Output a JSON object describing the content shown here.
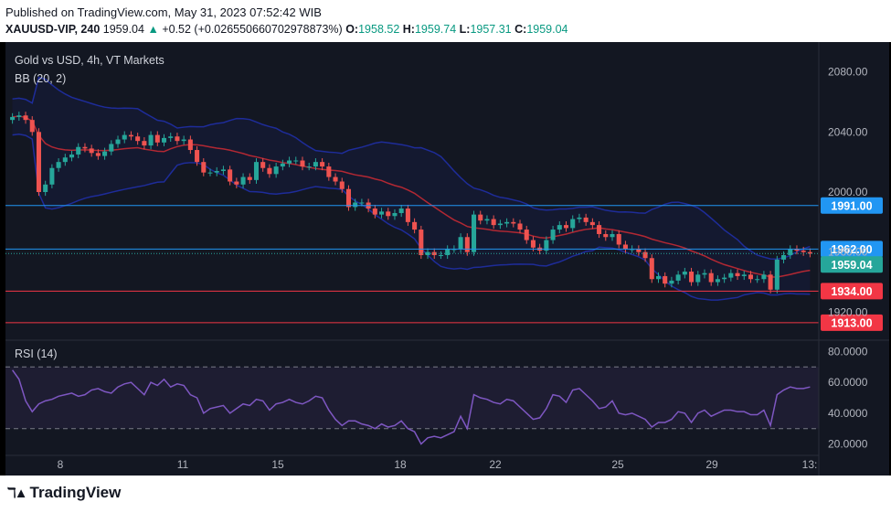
{
  "header": {
    "published": "Published on TradingView.com, May 31, 2023 07:52:42 WIB",
    "symbol": "XAUUSD-VIP, 240",
    "last": "1959.04",
    "change": "+0.52 (+0.026550660702978873%)",
    "o_label": "O:",
    "o": "1958.52",
    "h_label": "H:",
    "h": "1959.74",
    "l_label": "L:",
    "l": "1957.31",
    "c_label": "C:",
    "c": "1959.04"
  },
  "legend": {
    "title": "Gold vs USD, 4h, VT Markets",
    "bb": "BB (20, 2)",
    "rsi": "RSI (14)"
  },
  "footer": {
    "brand": "TradingView",
    "brand_icon": "tradingview-logo-icon"
  },
  "colors": {
    "bg": "#131722",
    "up": "#26a69a",
    "down": "#ef5350",
    "bb_band": "#1e2c99",
    "bb_basis": "#b22833",
    "rsi_line": "#7e57c2",
    "level_blue": "#2196f3",
    "level_red": "#f23645"
  },
  "chart_data": [
    {
      "type": "candlestick",
      "title": "Gold vs USD, 4h, VT Markets",
      "xlabel": "",
      "ylabel": "",
      "ylim": [
        1905,
        2095
      ],
      "y_ticks": [
        "2080.00",
        "2040.00",
        "2000.00",
        "1960.00",
        "1920.00"
      ],
      "x_ticks": [
        "8",
        "11",
        "15",
        "18",
        "22",
        "25",
        "29",
        "13:"
      ],
      "grid": false,
      "horizontal_levels": [
        {
          "label": "1991.00",
          "value": 1991.0,
          "color": "#2196f3"
        },
        {
          "label": "1962.00",
          "value": 1962.0,
          "color": "#2196f3"
        },
        {
          "label": "1934.00",
          "value": 1934.0,
          "color": "#f23645"
        },
        {
          "label": "1913.00",
          "value": 1913.0,
          "color": "#f23645"
        }
      ],
      "last_price": {
        "label": "1959.04",
        "value": 1959.04
      },
      "closes": [
        2050,
        2051,
        2048,
        2040,
        2000,
        2005,
        2016,
        2020,
        2023,
        2025,
        2030,
        2029,
        2026,
        2024,
        2027,
        2032,
        2035,
        2038,
        2037,
        2034,
        2031,
        2038,
        2033,
        2036,
        2037,
        2034,
        2035,
        2028,
        2020,
        2013,
        2013,
        2014,
        2015,
        2007,
        2005,
        2010,
        2008,
        2020,
        2016,
        2012,
        2017,
        2019,
        2021,
        2021,
        2017,
        2017,
        2020,
        2017,
        2010,
        2007,
        2002,
        1990,
        1993,
        1993,
        1989,
        1985,
        1987,
        1984,
        1986,
        1989,
        1980,
        1975,
        1958,
        1960,
        1958,
        1958,
        1962,
        1962,
        1970,
        1960,
        1985,
        1981,
        1982,
        1978,
        1979,
        1980,
        1979,
        1975,
        1968,
        1963,
        1961,
        1968,
        1975,
        1978,
        1976,
        1982,
        1983,
        1980,
        1978,
        1972,
        1970,
        1972,
        1965,
        1962,
        1962,
        1960,
        1956,
        1942,
        1944,
        1939,
        1941,
        1945,
        1947,
        1940,
        1945,
        1946,
        1940,
        1942,
        1943,
        1946,
        1944,
        1945,
        1942,
        1942,
        1945,
        1935,
        1955,
        1958,
        1962,
        1961,
        1960,
        1959.04
      ]
    },
    {
      "type": "line",
      "title": "RSI (14)",
      "ylim": [
        15,
        85
      ],
      "y_ticks": [
        "80.0000",
        "60.0000",
        "40.0000",
        "20.0000"
      ],
      "bands": [
        70,
        30
      ],
      "values": [
        68,
        62,
        48,
        41,
        46,
        48,
        49,
        51,
        52,
        53,
        51,
        52,
        55,
        56,
        54,
        53,
        57,
        59,
        60,
        56,
        52,
        60,
        58,
        62,
        57,
        59,
        58,
        52,
        50,
        40,
        43,
        44,
        45,
        40,
        43,
        46,
        45,
        49,
        48,
        42,
        46,
        47,
        49,
        47,
        46,
        48,
        51,
        50,
        42,
        36,
        32,
        35,
        35,
        33,
        32,
        30,
        33,
        31,
        32,
        35,
        30,
        28,
        20,
        24,
        25,
        24,
        26,
        28,
        38,
        30,
        52,
        50,
        49,
        47,
        46,
        49,
        48,
        44,
        40,
        36,
        37,
        43,
        52,
        51,
        47,
        55,
        56,
        52,
        48,
        43,
        44,
        48,
        40,
        39,
        40,
        38,
        36,
        31,
        34,
        34,
        36,
        41,
        40,
        34,
        40,
        42,
        38,
        40,
        42,
        42,
        41,
        41,
        39,
        39,
        42,
        32,
        52,
        55,
        57,
        56,
        56,
        57
      ]
    }
  ]
}
